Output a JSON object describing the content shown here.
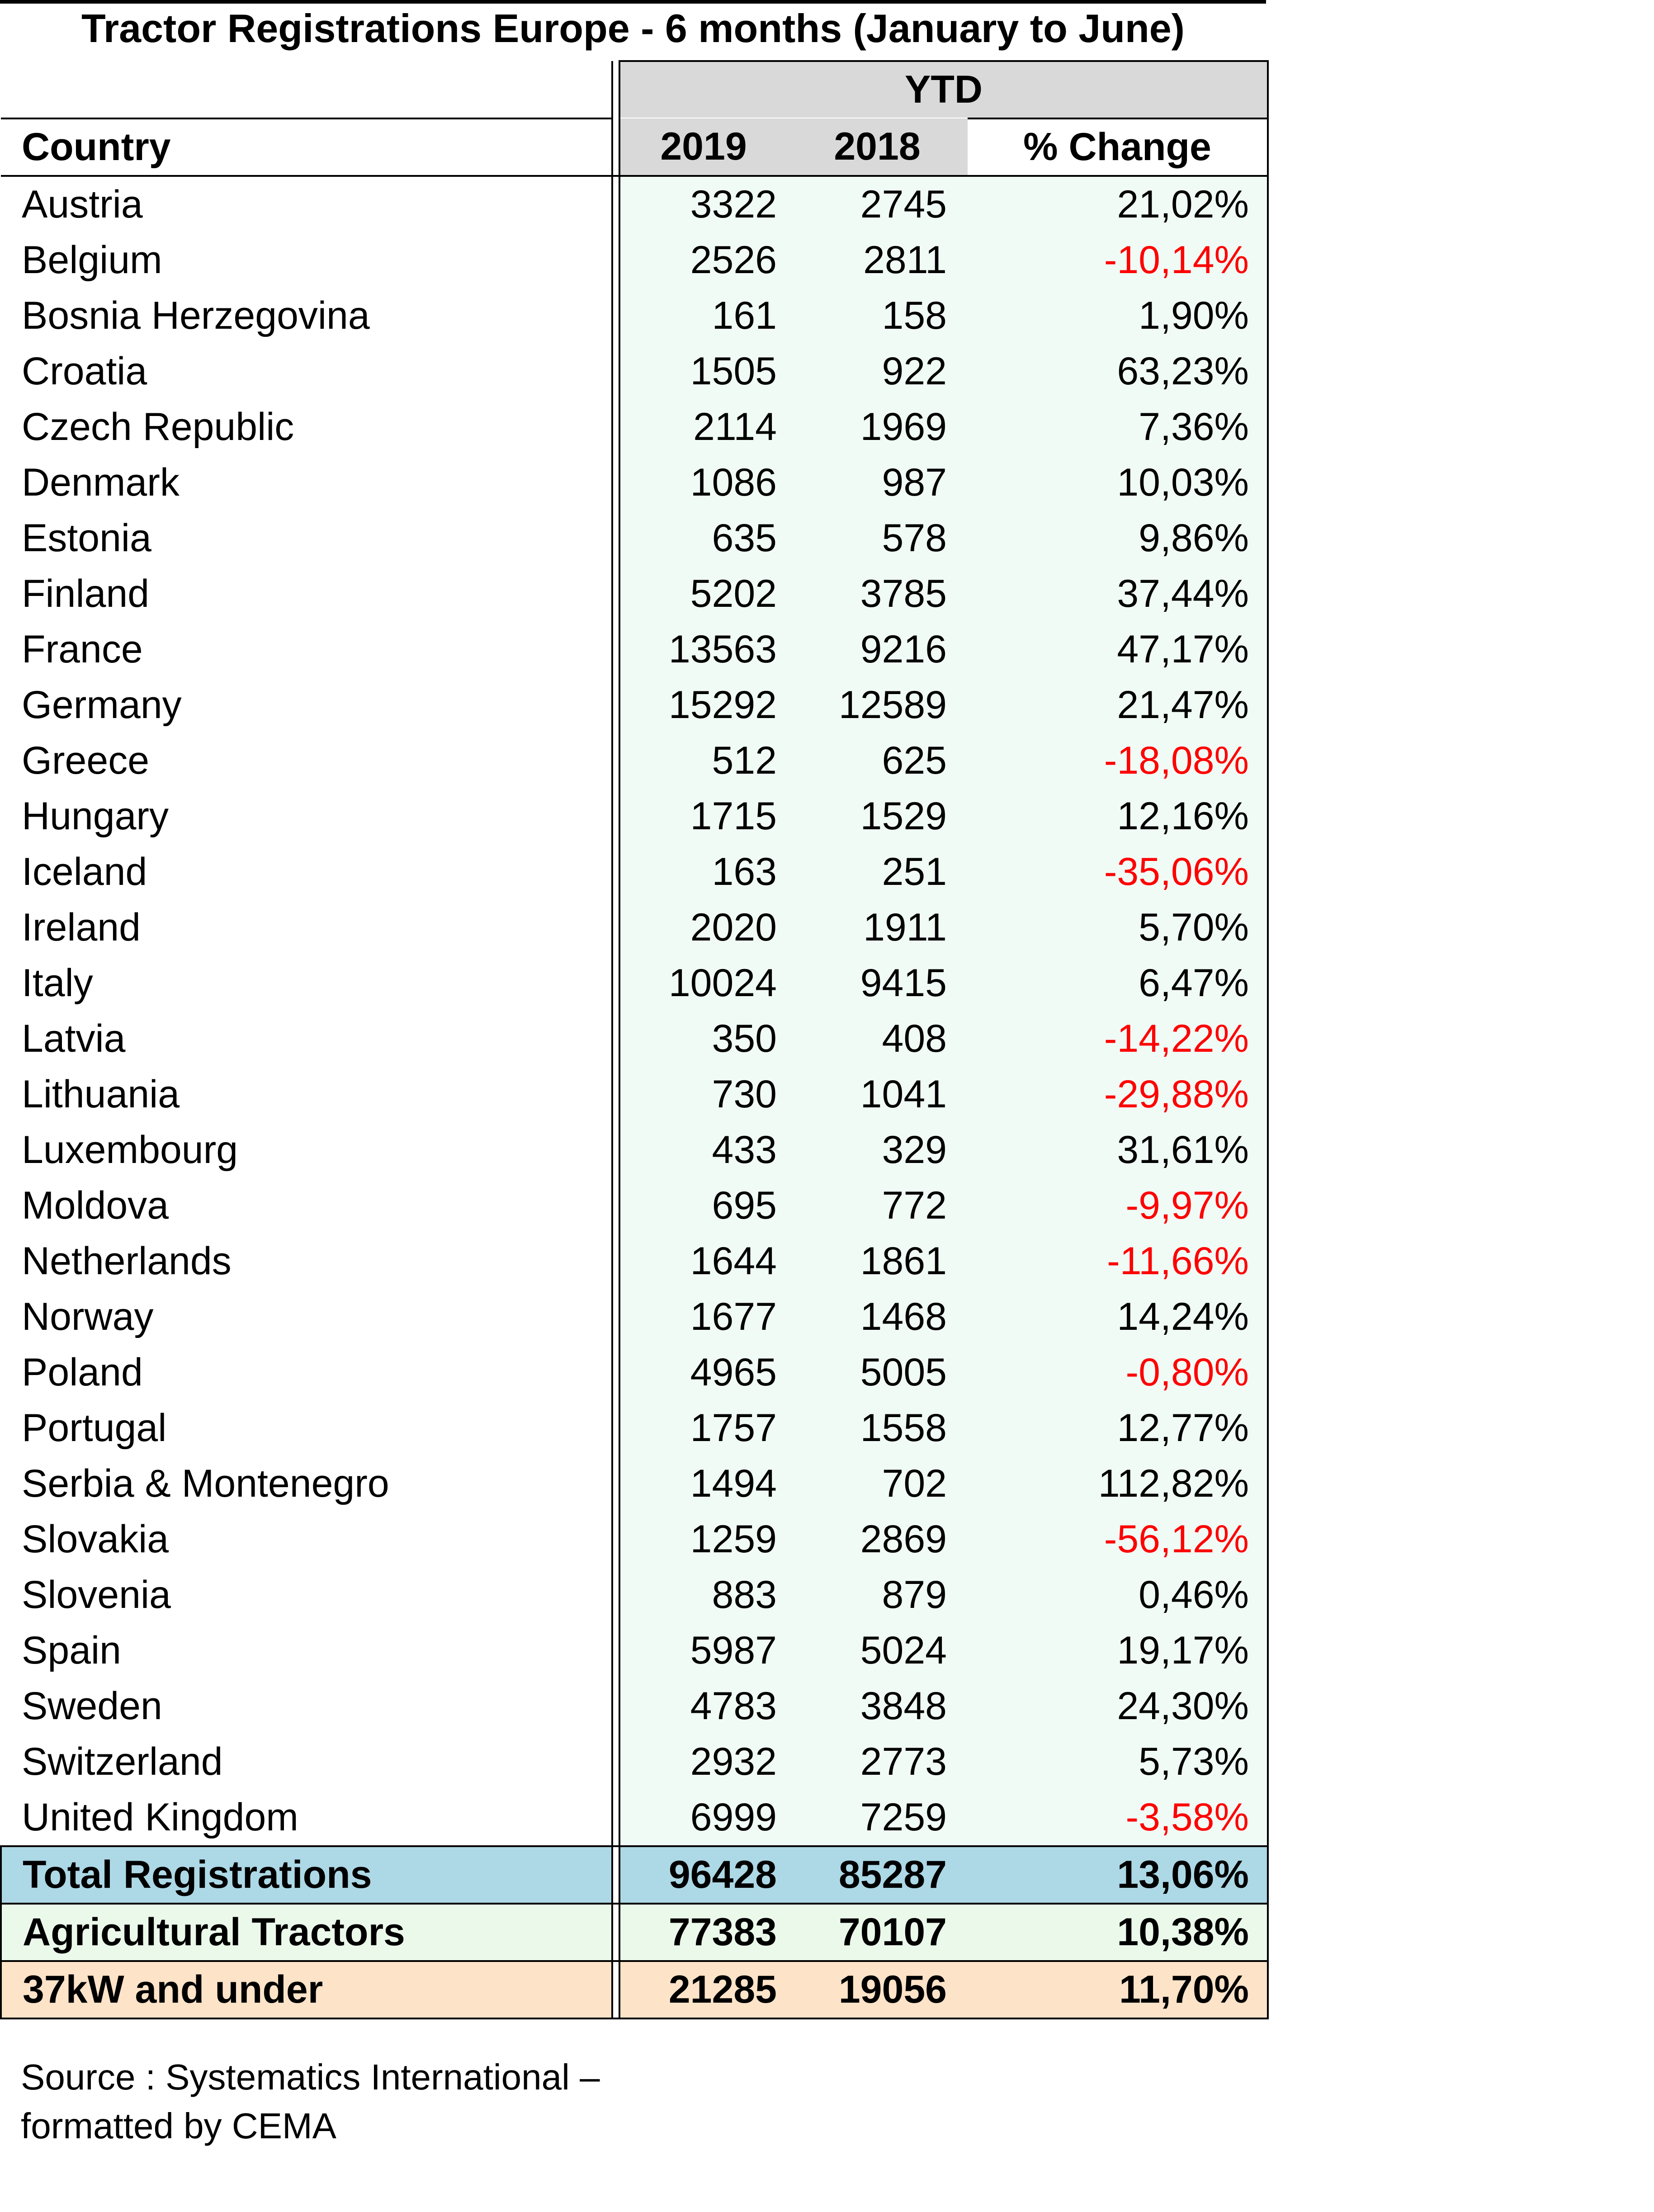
{
  "title": "Tractor Registrations Europe - 6 months (January to June)",
  "table": {
    "group_header": "YTD",
    "columns": {
      "country": "Country",
      "y2019": "2019",
      "y2018": "2018",
      "change": "% Change"
    },
    "rows": [
      {
        "country": "Austria",
        "y2019": "3322",
        "y2018": "2745",
        "change": "21,02%",
        "negative": false
      },
      {
        "country": "Belgium",
        "y2019": "2526",
        "y2018": "2811",
        "change": "-10,14%",
        "negative": true
      },
      {
        "country": "Bosnia Herzegovina",
        "y2019": "161",
        "y2018": "158",
        "change": "1,90%",
        "negative": false
      },
      {
        "country": "Croatia",
        "y2019": "1505",
        "y2018": "922",
        "change": "63,23%",
        "negative": false
      },
      {
        "country": "Czech Republic",
        "y2019": "2114",
        "y2018": "1969",
        "change": "7,36%",
        "negative": false
      },
      {
        "country": "Denmark",
        "y2019": "1086",
        "y2018": "987",
        "change": "10,03%",
        "negative": false
      },
      {
        "country": "Estonia",
        "y2019": "635",
        "y2018": "578",
        "change": "9,86%",
        "negative": false
      },
      {
        "country": "Finland",
        "y2019": "5202",
        "y2018": "3785",
        "change": "37,44%",
        "negative": false
      },
      {
        "country": "France",
        "y2019": "13563",
        "y2018": "9216",
        "change": "47,17%",
        "negative": false
      },
      {
        "country": "Germany",
        "y2019": "15292",
        "y2018": "12589",
        "change": "21,47%",
        "negative": false
      },
      {
        "country": "Greece",
        "y2019": "512",
        "y2018": "625",
        "change": "-18,08%",
        "negative": true
      },
      {
        "country": "Hungary",
        "y2019": "1715",
        "y2018": "1529",
        "change": "12,16%",
        "negative": false
      },
      {
        "country": "Iceland",
        "y2019": "163",
        "y2018": "251",
        "change": "-35,06%",
        "negative": true
      },
      {
        "country": "Ireland",
        "y2019": "2020",
        "y2018": "1911",
        "change": "5,70%",
        "negative": false
      },
      {
        "country": "Italy",
        "y2019": "10024",
        "y2018": "9415",
        "change": "6,47%",
        "negative": false
      },
      {
        "country": "Latvia",
        "y2019": "350",
        "y2018": "408",
        "change": "-14,22%",
        "negative": true
      },
      {
        "country": "Lithuania",
        "y2019": "730",
        "y2018": "1041",
        "change": "-29,88%",
        "negative": true
      },
      {
        "country": "Luxembourg",
        "y2019": "433",
        "y2018": "329",
        "change": "31,61%",
        "negative": false
      },
      {
        "country": "Moldova",
        "y2019": "695",
        "y2018": "772",
        "change": "-9,97%",
        "negative": true
      },
      {
        "country": "Netherlands",
        "y2019": "1644",
        "y2018": "1861",
        "change": "-11,66%",
        "negative": true
      },
      {
        "country": "Norway",
        "y2019": "1677",
        "y2018": "1468",
        "change": "14,24%",
        "negative": false
      },
      {
        "country": "Poland",
        "y2019": "4965",
        "y2018": "5005",
        "change": "-0,80%",
        "negative": true
      },
      {
        "country": "Portugal",
        "y2019": "1757",
        "y2018": "1558",
        "change": "12,77%",
        "negative": false
      },
      {
        "country": "Serbia & Montenegro",
        "y2019": "1494",
        "y2018": "702",
        "change": "112,82%",
        "negative": false
      },
      {
        "country": "Slovakia",
        "y2019": "1259",
        "y2018": "2869",
        "change": "-56,12%",
        "negative": true
      },
      {
        "country": "Slovenia",
        "y2019": "883",
        "y2018": "879",
        "change": "0,46%",
        "negative": false
      },
      {
        "country": "Spain",
        "y2019": "5987",
        "y2018": "5024",
        "change": "19,17%",
        "negative": false
      },
      {
        "country": "Sweden",
        "y2019": "4783",
        "y2018": "3848",
        "change": "24,30%",
        "negative": false
      },
      {
        "country": "Switzerland",
        "y2019": "2932",
        "y2018": "2773",
        "change": "5,73%",
        "negative": false
      },
      {
        "country": "United Kingdom",
        "y2019": "6999",
        "y2018": "7259",
        "change": "-3,58%",
        "negative": true
      }
    ],
    "totals": [
      {
        "label": "Total Registrations",
        "y2019": "96428",
        "y2018": "85287",
        "change": "13,06%"
      },
      {
        "label": "Agricultural Tractors",
        "y2019": "77383",
        "y2018": "70107",
        "change": "10,38%"
      },
      {
        "label": "37kW and under",
        "y2019": "21285",
        "y2018": "19056",
        "change": "11,70%"
      }
    ]
  },
  "source": {
    "line1": "Source : Systematics International –",
    "line2": "formatted by CEMA"
  },
  "colors": {
    "negative": "#ff0000",
    "header_gray": "#d9d9d9",
    "data_tint": "#f1fbf6",
    "total_registrations": "#add8e6",
    "agricultural_tractors": "#ebf9ea",
    "small_tractors": "#fde3c8"
  }
}
